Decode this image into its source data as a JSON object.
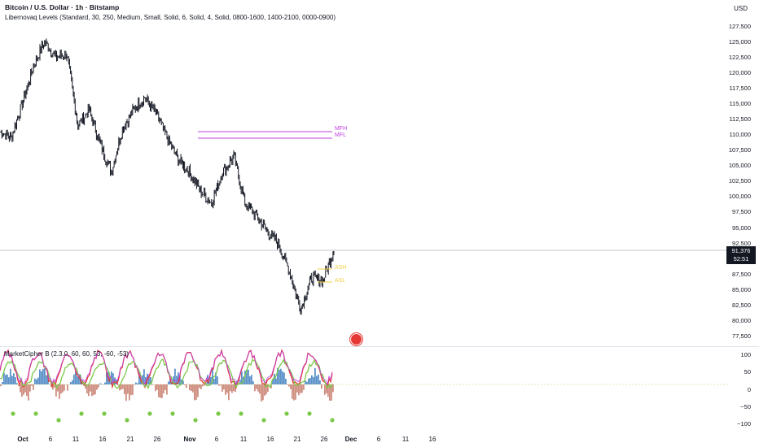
{
  "header": {
    "symbol": "Bitcoin / U.S. Dollar · 1h · Bitstamp",
    "indicator": "Libernovaq Levels (Standard, 30, 250, Medium, Small, Solid, 6, Solid, 4, Solid, 0800-1600, 1400-2100, 0000-0900)"
  },
  "currency": "USD",
  "price_axis": [
    "127,500",
    "125,000",
    "122,500",
    "120,000",
    "117,500",
    "115,000",
    "112,500",
    "110,000",
    "107,500",
    "105,000",
    "102,500",
    "100,000",
    "97,500",
    "95,000",
    "92,500",
    "87,500",
    "85,000",
    "82,500",
    "80,000",
    "77,500"
  ],
  "current_price": {
    "value": "91,376",
    "countdown": "52:51"
  },
  "levels": [
    {
      "label": "MFH",
      "color": "#c040e0"
    },
    {
      "label": "MFL",
      "color": "#c040e0"
    },
    {
      "label": "ASH",
      "color": "#f0d040"
    },
    {
      "label": "ASL",
      "color": "#f0d040"
    }
  ],
  "oscillator": {
    "title": "MarketCipher B (2.3.0, 60, 60, 53, -60, -53)",
    "axis": [
      "100",
      "50",
      "0",
      "−50",
      "−100"
    ]
  },
  "time_axis": [
    {
      "label": "Oct",
      "bold": true
    },
    {
      "label": "6",
      "bold": false
    },
    {
      "label": "11",
      "bold": false
    },
    {
      "label": "16",
      "bold": false
    },
    {
      "label": "21",
      "bold": false
    },
    {
      "label": "26",
      "bold": false
    },
    {
      "label": "Nov",
      "bold": true
    },
    {
      "label": "6",
      "bold": false
    },
    {
      "label": "11",
      "bold": false
    },
    {
      "label": "16",
      "bold": false
    },
    {
      "label": "21",
      "bold": false
    },
    {
      "label": "26",
      "bold": false
    },
    {
      "label": "Dec",
      "bold": true
    },
    {
      "label": "6",
      "bold": false
    },
    {
      "label": "11",
      "bold": false
    },
    {
      "label": "16",
      "bold": false
    }
  ],
  "chart_data": {
    "type": "line",
    "series": [
      {
        "values": [
          110500,
          109500,
          115000,
          121000,
          125000,
          122500,
          123000,
          111500,
          114000,
          108500,
          104000,
          111000,
          114000,
          116000,
          113500,
          109500,
          106000,
          104000,
          101000,
          99000,
          104000,
          106500,
          99000,
          97000,
          94500,
          92500,
          88000,
          82000,
          87000,
          86500,
          91500
        ]
      }
    ],
    "x": [
      "Sep 30",
      "Oct 2",
      "Oct 4",
      "Oct 6",
      "Oct 8",
      "Oct 10",
      "Oct 12",
      "Oct 14",
      "Oct 16",
      "Oct 18",
      "Oct 20",
      "Oct 22",
      "Oct 24",
      "Oct 26",
      "Oct 28",
      "Oct 30",
      "Nov 1",
      "Nov 3",
      "Nov 5",
      "Nov 7",
      "Nov 9",
      "Nov 11",
      "Nov 13",
      "Nov 15",
      "Nov 17",
      "Nov 19",
      "Nov 21",
      "Nov 22",
      "Nov 24",
      "Nov 26",
      "Nov 28"
    ],
    "ylim": [
      76000,
      129000
    ],
    "colors": {
      "candles": "#131722",
      "mf": "#c040e0",
      "as": "#f0d040",
      "wave1": "#e53935",
      "wave2": "#7cc84a",
      "money": "#3f7fbf"
    }
  }
}
